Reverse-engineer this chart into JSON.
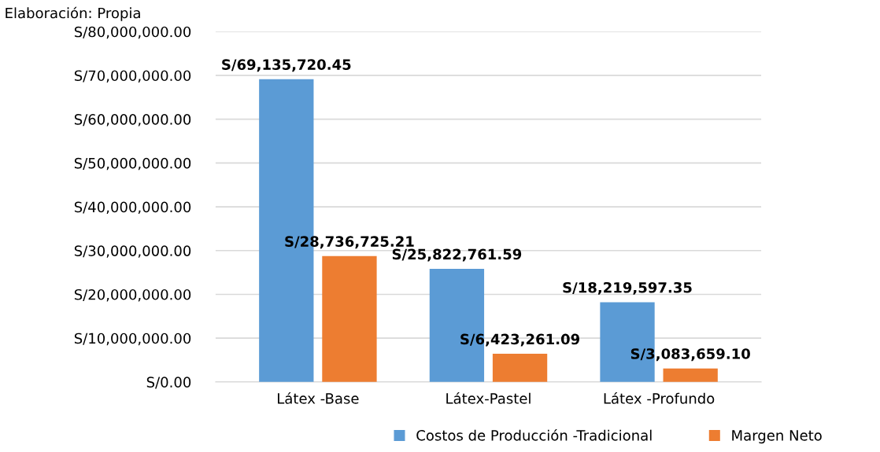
{
  "chart_data": {
    "type": "bar",
    "annotations": [
      "Elaboración: Propia"
    ],
    "categories": [
      "Látex -Base",
      "Látex-Pastel",
      "Látex -Profundo"
    ],
    "series": [
      {
        "name": "Costos de Producción -Tradicional",
        "color": "#5b9bd5",
        "values": [
          69135720.45,
          25822761.59,
          18219597.35
        ],
        "value_labels": [
          "S/69,135,720.45",
          "S/25,822,761.59",
          "S/18,219,597.35"
        ]
      },
      {
        "name": "Margen Neto",
        "color": "#ed7d31",
        "values": [
          28736725.21,
          6423261.09,
          3083659.1
        ],
        "value_labels": [
          "S/28,736,725.21",
          "S/6,423,261.09",
          "S/3,083,659.10"
        ]
      }
    ],
    "ylim": [
      0,
      80000000
    ],
    "yticks": [
      {
        "value": 0,
        "label": "S/0.00"
      },
      {
        "value": 10000000,
        "label": "S/10,000,000.00"
      },
      {
        "value": 20000000,
        "label": "S/20,000,000.00"
      },
      {
        "value": 30000000,
        "label": "S/30,000,000.00"
      },
      {
        "value": 40000000,
        "label": "S/40,000,000.00"
      },
      {
        "value": 50000000,
        "label": "S/50,000,000.00"
      },
      {
        "value": 60000000,
        "label": "S/60,000,000.00"
      },
      {
        "value": 70000000,
        "label": "S/70,000,000.00"
      },
      {
        "value": 80000000,
        "label": "S/80,000,000.00"
      }
    ],
    "grid": "y",
    "legend": "bottom"
  }
}
